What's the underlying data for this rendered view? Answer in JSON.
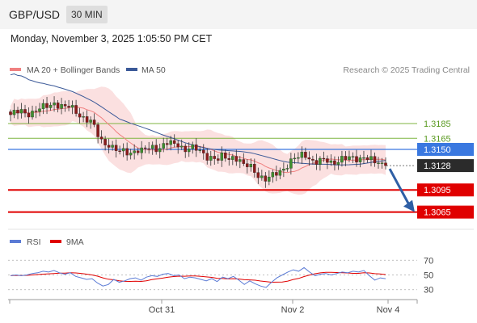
{
  "header": {
    "symbol": "GBP/USD",
    "timeframe": "30 MIN"
  },
  "datetime": "Monday, November 3, 2025 1:05:50 PM CET",
  "price_legend": [
    {
      "name": "MA 20 + Bollinger Bands",
      "color": "#f08080"
    },
    {
      "name": "MA 50",
      "color": "#3b5998"
    }
  ],
  "credit": "Research © 2025 Trading Central",
  "rsi_legend": [
    {
      "name": "RSI",
      "color": "#5b7bd5"
    },
    {
      "name": "9MA",
      "color": "#e00000"
    }
  ],
  "chart_data": {
    "type": "candlestick",
    "x_ticks": [
      "Oct 31",
      "Nov 2",
      "Nov 4"
    ],
    "ylim": [
      1.3046,
      1.3243
    ],
    "close_path": [
      1.3197,
      1.3199,
      1.3201,
      1.3199,
      1.3201,
      1.3203,
      1.3206,
      1.3209,
      1.3214,
      1.321,
      1.3206,
      1.3207,
      1.3202,
      1.3196,
      1.319,
      1.3185,
      1.317,
      1.316,
      1.3158,
      1.315,
      1.3145,
      1.3148,
      1.3146,
      1.315,
      1.3146,
      1.315,
      1.3154,
      1.3152,
      1.3155,
      1.3158,
      1.3156,
      1.3158,
      1.315,
      1.3152,
      1.3149,
      1.3147,
      1.3142,
      1.314,
      1.3134,
      1.314,
      1.3138,
      1.3141,
      1.3137,
      1.3125,
      1.3128,
      1.312,
      1.3114,
      1.3108,
      1.3112,
      1.3118,
      1.3124,
      1.313,
      1.3136,
      1.3138,
      1.3145,
      1.3139,
      1.3132,
      1.3133,
      1.3135,
      1.3133,
      1.3135,
      1.3137,
      1.3136,
      1.3138,
      1.3138,
      1.3141,
      1.3136,
      1.3131,
      1.3132,
      1.3128
    ],
    "levels": [
      {
        "price": 1.3185,
        "label": "1.3185",
        "color": "#7fb540",
        "kind": "resistance"
      },
      {
        "price": 1.3165,
        "label": "1.3165",
        "color": "#7fb540",
        "kind": "resistance"
      },
      {
        "price": 1.315,
        "label": "1.3150",
        "color": "#3a78e0",
        "kind": "pivot"
      },
      {
        "price": 1.3128,
        "label": "1.3128",
        "color": "#333333",
        "kind": "last"
      },
      {
        "price": 1.3095,
        "label": "1.3095",
        "color": "#e00000",
        "kind": "support"
      },
      {
        "price": 1.3065,
        "label": "1.3065",
        "color": "#e00000",
        "kind": "support"
      }
    ],
    "rsi": {
      "ylim": [
        22,
        78
      ],
      "levels": [
        "70",
        "50",
        "30"
      ],
      "values": [
        49,
        50,
        49,
        50,
        52,
        53,
        55,
        54,
        56,
        53,
        51,
        53,
        48,
        46,
        44,
        45,
        39,
        35,
        37,
        44,
        40,
        42,
        45,
        46,
        43,
        47,
        49,
        48,
        51,
        52,
        49,
        50,
        45,
        47,
        46,
        44,
        42,
        45,
        41,
        47,
        45,
        48,
        43,
        37,
        42,
        38,
        35,
        33,
        40,
        46,
        50,
        54,
        57,
        55,
        60,
        54,
        49,
        51,
        52,
        50,
        52,
        54,
        53,
        55,
        54,
        56,
        49,
        43,
        46,
        45
      ]
    }
  }
}
